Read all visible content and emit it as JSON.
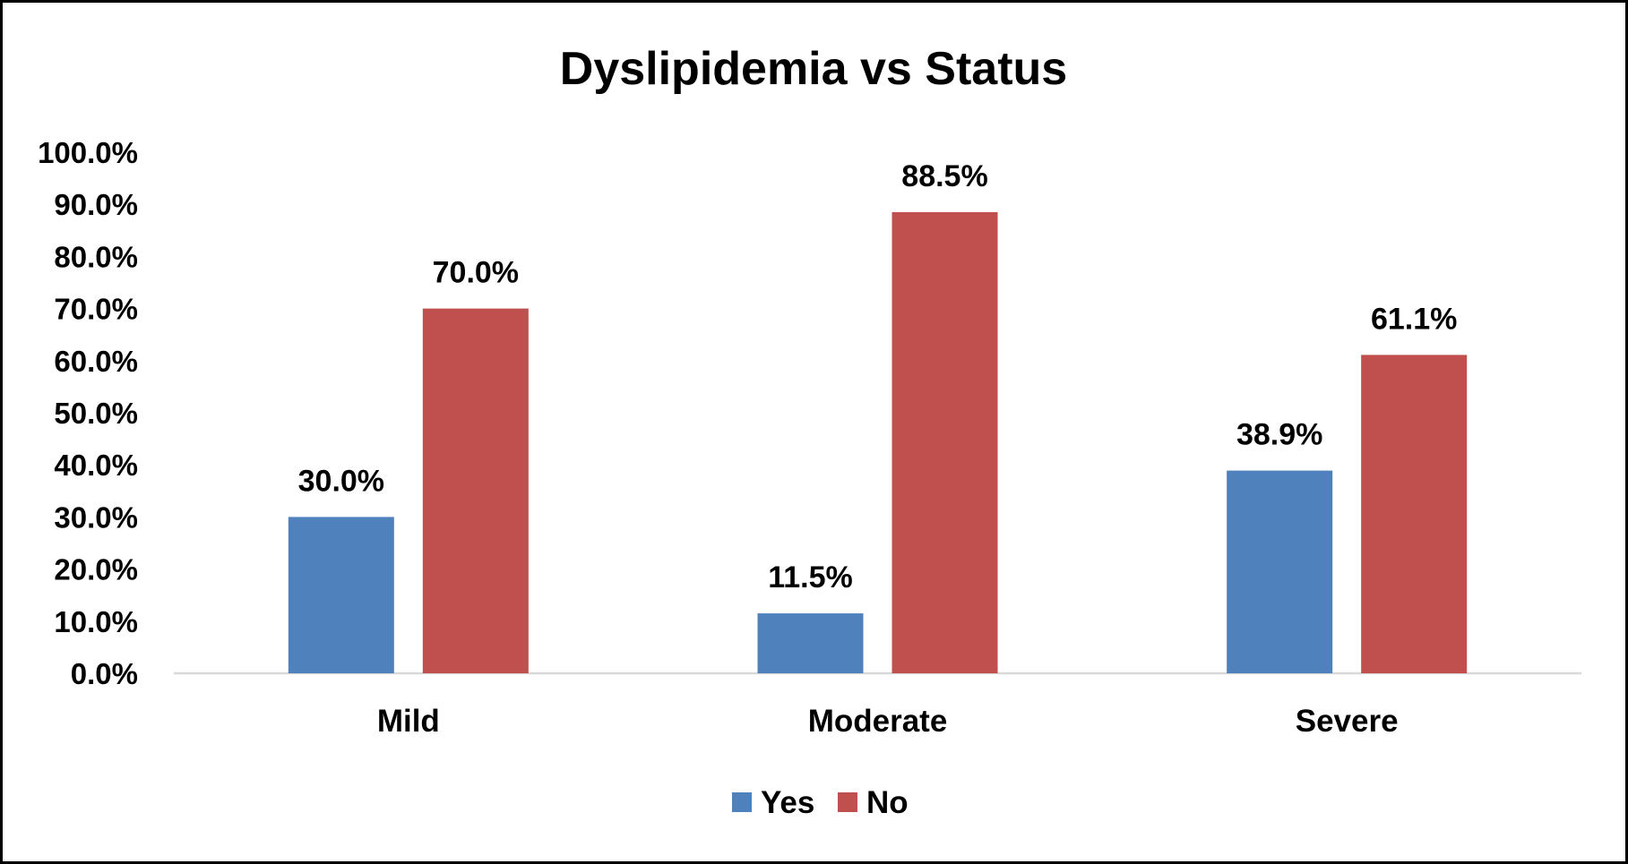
{
  "chart_data": {
    "type": "bar",
    "title": "Dyslipidemia vs Status",
    "xlabel": "",
    "ylabel": "",
    "categories": [
      "Mild",
      "Moderate",
      "Severe"
    ],
    "series": [
      {
        "name": "Yes",
        "color": "#4F81BD",
        "values": [
          30.0,
          11.5,
          38.9
        ],
        "labels": [
          "30.0%",
          "11.5%",
          "38.9%"
        ]
      },
      {
        "name": "No",
        "color": "#C0504D",
        "values": [
          70.0,
          88.5,
          61.1
        ],
        "labels": [
          "70.0%",
          "88.5%",
          "61.1%"
        ]
      }
    ],
    "ylim": [
      0,
      100
    ],
    "yticks": [
      "0.0%",
      "10.0%",
      "20.0%",
      "30.0%",
      "40.0%",
      "50.0%",
      "60.0%",
      "70.0%",
      "80.0%",
      "90.0%",
      "100.0%"
    ],
    "grid": false,
    "legend_position": "bottom",
    "axis_color": "#D9D9D9"
  }
}
